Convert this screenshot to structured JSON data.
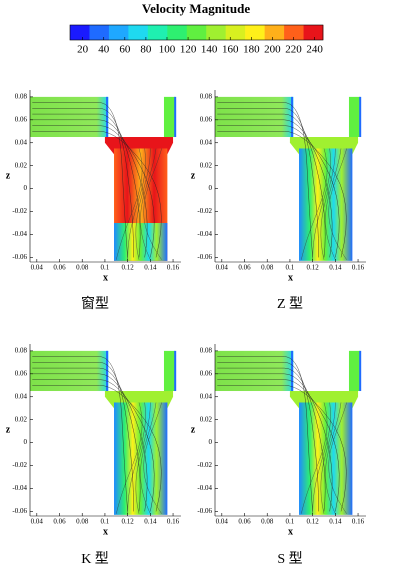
{
  "colorbar": {
    "title": "Velocity Magnitude",
    "clim": [
      8,
      248
    ],
    "ticks": [
      20,
      40,
      60,
      80,
      100,
      120,
      140,
      160,
      180,
      200,
      220,
      240
    ],
    "colors": [
      "#1a1aff",
      "#1f6bff",
      "#1fa8ff",
      "#1fd9f0",
      "#1ff0b0",
      "#2ef070",
      "#60f040",
      "#a0f030",
      "#d8f020",
      "#fff01a",
      "#ffb01a",
      "#ff601a",
      "#e8141a"
    ]
  },
  "panels": [
    {
      "caption": "窗型",
      "x_label": "x",
      "y_label": "z",
      "xlim": [
        0.034,
        0.167
      ],
      "ylim": [
        -0.064,
        0.086
      ],
      "xticks": [
        0.04,
        0.06,
        0.08,
        0.1,
        0.12,
        0.14,
        0.16
      ],
      "yticks": [
        0.08,
        0.06,
        0.04,
        0.02,
        0,
        -0.02,
        -0.04,
        -0.06
      ]
    },
    {
      "caption": "Z 型",
      "x_label": "x",
      "y_label": "z",
      "xlim": [
        0.034,
        0.167
      ],
      "ylim": [
        -0.064,
        0.086
      ],
      "xticks": [
        0.04,
        0.06,
        0.08,
        0.1,
        0.12,
        0.14,
        0.16
      ],
      "yticks": [
        0.08,
        0.06,
        0.04,
        0.02,
        0,
        -0.02,
        -0.04,
        -0.06
      ]
    },
    {
      "caption": "K 型",
      "x_label": "x",
      "y_label": "z",
      "xlim": [
        0.034,
        0.167
      ],
      "ylim": [
        -0.064,
        0.086
      ],
      "xticks": [
        0.04,
        0.06,
        0.08,
        0.1,
        0.12,
        0.14,
        0.16
      ],
      "yticks": [
        0.08,
        0.06,
        0.04,
        0.02,
        0,
        -0.02,
        -0.04,
        -0.06
      ]
    },
    {
      "caption": "S 型",
      "x_label": "x",
      "y_label": "z",
      "xlim": [
        0.034,
        0.167
      ],
      "ylim": [
        -0.064,
        0.086
      ],
      "xticks": [
        0.04,
        0.06,
        0.08,
        0.1,
        0.12,
        0.14,
        0.16
      ],
      "yticks": [
        0.08,
        0.06,
        0.04,
        0.02,
        0,
        -0.02,
        -0.04,
        -0.06
      ]
    }
  ]
}
